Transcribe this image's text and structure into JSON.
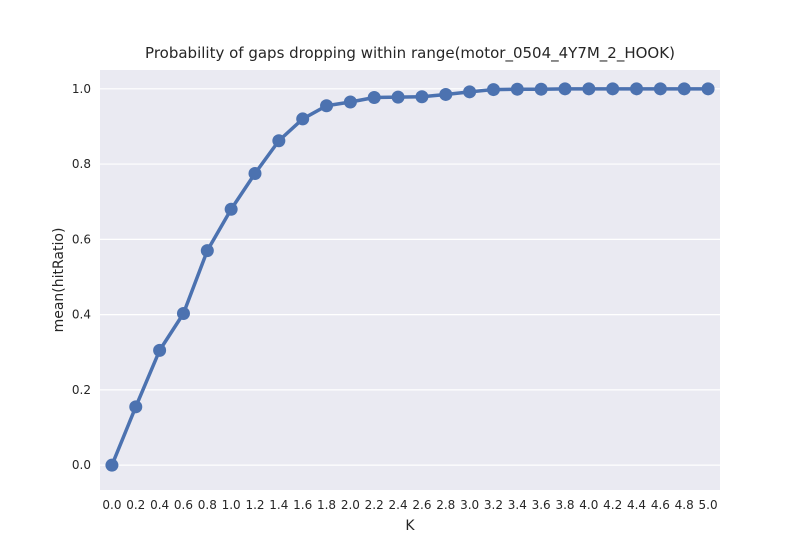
{
  "chart_data": {
    "type": "line",
    "title": "Probability of gaps dropping within range(motor_0504_4Y7M_2_HOOK)",
    "xlabel": "K",
    "ylabel": "mean(hitRatio)",
    "categories": [
      "0.0",
      "0.2",
      "0.4",
      "0.6",
      "0.8",
      "1.0",
      "1.2",
      "1.4",
      "1.6",
      "1.8",
      "2.0",
      "2.2",
      "2.4",
      "2.6",
      "2.8",
      "3.0",
      "3.2",
      "3.4",
      "3.6",
      "3.8",
      "4.0",
      "4.2",
      "4.4",
      "4.6",
      "4.8",
      "5.0"
    ],
    "series": [
      {
        "values": [
          0.0,
          0.155,
          0.305,
          0.403,
          0.57,
          0.68,
          0.775,
          0.862,
          0.92,
          0.955,
          0.965,
          0.977,
          0.978,
          0.979,
          0.985,
          0.992,
          0.998,
          0.999,
          0.999,
          1.0,
          1.0,
          1.0,
          1.0,
          1.0,
          1.0,
          1.0
        ]
      }
    ],
    "yticks": [
      "0.0",
      "0.2",
      "0.4",
      "0.6",
      "0.8",
      "1.0"
    ],
    "ylim": [
      -0.066,
      1.05
    ],
    "grid": true,
    "colors": {
      "background": "#eaeaf2",
      "grid": "#ffffff",
      "line": "#4c72b0"
    }
  }
}
